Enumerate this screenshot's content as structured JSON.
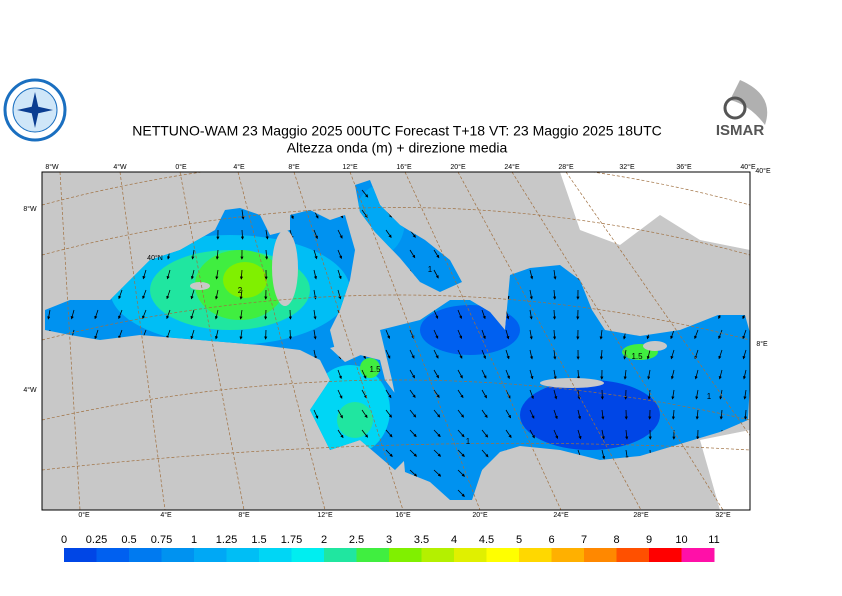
{
  "header": {
    "title": "NETTUNO-WAM 23   Maggio  2025 00UTC Forecast T+18 VT: 23   Maggio  2025 18UTC",
    "subtitle": "Altezza onda (m) + direzione media",
    "logo_right": "ISMAR"
  },
  "map": {
    "top_labels": [
      "8°W",
      "4°W",
      "0°E",
      "4°E",
      "8°E",
      "12°E",
      "16°E",
      "20°E",
      "24°E",
      "28°E",
      "32°E",
      "36°E",
      "40°E"
    ],
    "bottom_labels": [
      "0°E",
      "4°E",
      "8°E",
      "12°E",
      "16°E",
      "20°E",
      "24°E",
      "28°E",
      "32°E"
    ],
    "left_labels": [
      "8°W",
      "40°N",
      "4°W"
    ],
    "right_labels": [
      "40°E",
      "8°E"
    ],
    "contour_labels": [
      "2",
      "1.5",
      "1.5",
      "1",
      "1",
      "1"
    ]
  },
  "colorbar": {
    "labels": [
      "0",
      "0.25",
      "0.5",
      "0.75",
      "1",
      "1.25",
      "1.5",
      "1.75",
      "2",
      "2.5",
      "3",
      "3.5",
      "4",
      "4.5",
      "5",
      "6",
      "7",
      "8",
      "9",
      "10",
      "11"
    ],
    "colors": [
      "#0046e6",
      "#0060f0",
      "#007af0",
      "#0092f0",
      "#00a8f5",
      "#00bef5",
      "#00d6f5",
      "#00eef0",
      "#20e6a0",
      "#40ee40",
      "#80f000",
      "#b4f000",
      "#e0f000",
      "#ffff00",
      "#ffd800",
      "#ffb000",
      "#ff8800",
      "#ff5000",
      "#ff0000",
      "#ff10a8"
    ]
  }
}
